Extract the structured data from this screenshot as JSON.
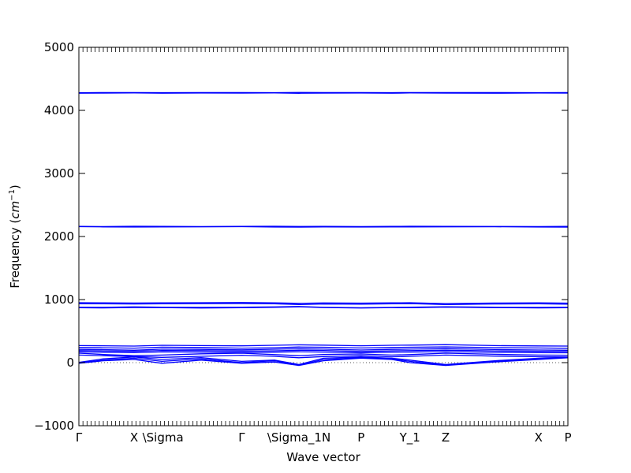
{
  "chart_data": {
    "type": "line",
    "title": "",
    "xlabel": "Wave vector",
    "ylabel": "Frequency ($cm^{-1}$)",
    "ylabel_text": "Frequency (",
    "ylabel_unit_base": "cm",
    "ylabel_unit_exp": "−1",
    "ylabel_close": ")",
    "ylim": [
      -1000,
      5000
    ],
    "xlim": [
      0,
      1
    ],
    "yticks": [
      -1000,
      0,
      1000,
      2000,
      3000,
      4000,
      5000
    ],
    "ytick_labels": [
      "−1000",
      "0",
      "1000",
      "2000",
      "3000",
      "4000",
      "5000"
    ],
    "xticks": [
      {
        "pos": 0.0,
        "label": "Γ"
      },
      {
        "pos": 0.113,
        "label": "X"
      },
      {
        "pos": 0.172,
        "label": "\\Sigma"
      },
      {
        "pos": 0.333,
        "label": "Γ"
      },
      {
        "pos": 0.45,
        "label": "\\Sigma_1N"
      },
      {
        "pos": 0.577,
        "label": "P"
      },
      {
        "pos": 0.677,
        "label": "Y_1"
      },
      {
        "pos": 0.75,
        "label": "Z"
      },
      {
        "pos": 0.94,
        "label": "X"
      },
      {
        "pos": 1.0,
        "label": "P"
      }
    ],
    "grid": false,
    "zero_line": "dotted",
    "line_color": "#0000ff",
    "series": [
      {
        "x": [
          0,
          0.05,
          0.113,
          0.17,
          0.25,
          0.333,
          0.4,
          0.45,
          0.5,
          0.577,
          0.64,
          0.677,
          0.75,
          0.85,
          0.94,
          1.0
        ],
        "values": [
          4280,
          4282,
          4283,
          4281,
          4282,
          4283,
          4281,
          4284,
          4282,
          4283,
          4281,
          4282,
          4283,
          4282,
          4281,
          4282
        ]
      },
      {
        "x": [
          0,
          0.05,
          0.113,
          0.17,
          0.25,
          0.333,
          0.4,
          0.45,
          0.5,
          0.577,
          0.64,
          0.677,
          0.75,
          0.85,
          0.94,
          1.0
        ],
        "values": [
          4272,
          4274,
          4276,
          4273,
          4275,
          4274,
          4276,
          4271,
          4274,
          4275,
          4273,
          4276,
          4274,
          4273,
          4275,
          4274
        ]
      },
      {
        "x": [
          0,
          0.05,
          0.113,
          0.17,
          0.25,
          0.333,
          0.4,
          0.45,
          0.5,
          0.577,
          0.64,
          0.677,
          0.75,
          0.85,
          0.94,
          1.0
        ],
        "values": [
          2160,
          2158,
          2162,
          2161,
          2158,
          2160,
          2163,
          2159,
          2161,
          2158,
          2160,
          2162,
          2161,
          2159,
          2158,
          2160
        ]
      },
      {
        "x": [
          0,
          0.05,
          0.113,
          0.17,
          0.25,
          0.333,
          0.4,
          0.45,
          0.5,
          0.577,
          0.64,
          0.677,
          0.75,
          0.85,
          0.94,
          1.0
        ],
        "values": [
          2156,
          2152,
          2150,
          2151,
          2154,
          2156,
          2150,
          2149,
          2152,
          2150,
          2153,
          2151,
          2154,
          2155,
          2150,
          2149
        ]
      },
      {
        "x": [
          0,
          0.05,
          0.113,
          0.17,
          0.25,
          0.333,
          0.4,
          0.45,
          0.5,
          0.577,
          0.64,
          0.677,
          0.75,
          0.85,
          0.94,
          1.0
        ],
        "values": [
          950,
          948,
          945,
          947,
          950,
          952,
          948,
          940,
          946,
          944,
          947,
          950,
          935,
          945,
          948,
          944
        ]
      },
      {
        "x": [
          0,
          0.05,
          0.113,
          0.17,
          0.25,
          0.333,
          0.4,
          0.45,
          0.5,
          0.577,
          0.64,
          0.677,
          0.75,
          0.85,
          0.94,
          1.0
        ],
        "values": [
          935,
          932,
          930,
          933,
          936,
          938,
          933,
          920,
          930,
          928,
          932,
          936,
          920,
          930,
          932,
          928
        ]
      },
      {
        "x": [
          0,
          0.05,
          0.113,
          0.17,
          0.25,
          0.333,
          0.4,
          0.45,
          0.5,
          0.577,
          0.64,
          0.677,
          0.75,
          0.85,
          0.94,
          1.0
        ],
        "values": [
          880,
          878,
          884,
          879,
          876,
          880,
          884,
          890,
          878,
          870,
          876,
          880,
          885,
          879,
          876,
          880
        ]
      },
      {
        "x": [
          0,
          0.05,
          0.113,
          0.17,
          0.25,
          0.333,
          0.4,
          0.45,
          0.5,
          0.577,
          0.64,
          0.677,
          0.75,
          0.85,
          0.94,
          1.0
        ],
        "values": [
          870,
          868,
          874,
          872,
          866,
          870,
          878,
          885,
          874,
          866,
          872,
          870,
          880,
          872,
          868,
          870
        ]
      },
      {
        "x": [
          0,
          0.05,
          0.113,
          0.17,
          0.25,
          0.333,
          0.4,
          0.45,
          0.5,
          0.577,
          0.64,
          0.677,
          0.75,
          0.85,
          0.94,
          1.0
        ],
        "values": [
          270,
          268,
          262,
          275,
          270,
          266,
          275,
          282,
          278,
          268,
          275,
          278,
          285,
          270,
          265,
          262
        ]
      },
      {
        "x": [
          0,
          0.05,
          0.113,
          0.17,
          0.25,
          0.333,
          0.4,
          0.45,
          0.5,
          0.577,
          0.64,
          0.677,
          0.75,
          0.85,
          0.94,
          1.0
        ],
        "values": [
          240,
          236,
          230,
          245,
          240,
          230,
          236,
          248,
          244,
          232,
          240,
          244,
          250,
          238,
          232,
          228
        ]
      },
      {
        "x": [
          0,
          0.05,
          0.113,
          0.17,
          0.25,
          0.333,
          0.4,
          0.45,
          0.5,
          0.577,
          0.64,
          0.677,
          0.75,
          0.85,
          0.94,
          1.0
        ],
        "values": [
          210,
          206,
          196,
          214,
          210,
          202,
          212,
          220,
          214,
          200,
          210,
          214,
          222,
          208,
          200,
          196
        ]
      },
      {
        "x": [
          0,
          0.05,
          0.113,
          0.17,
          0.25,
          0.333,
          0.4,
          0.45,
          0.5,
          0.577,
          0.64,
          0.677,
          0.75,
          0.85,
          0.94,
          1.0
        ],
        "values": [
          190,
          186,
          180,
          192,
          190,
          182,
          188,
          196,
          192,
          178,
          188,
          190,
          198,
          186,
          180,
          176
        ]
      },
      {
        "x": [
          0,
          0.05,
          0.113,
          0.17,
          0.25,
          0.333,
          0.4,
          0.45,
          0.5,
          0.577,
          0.64,
          0.677,
          0.75,
          0.85,
          0.94,
          1.0
        ],
        "values": [
          170,
          165,
          158,
          170,
          168,
          160,
          166,
          172,
          168,
          156,
          166,
          168,
          174,
          164,
          158,
          156
        ]
      },
      {
        "x": [
          0,
          0.05,
          0.113,
          0.17,
          0.25,
          0.333,
          0.4,
          0.45,
          0.5,
          0.577,
          0.64,
          0.677,
          0.75,
          0.85,
          0.94,
          1.0
        ],
        "values": [
          150,
          130,
          110,
          120,
          140,
          150,
          128,
          110,
          130,
          138,
          120,
          128,
          150,
          132,
          120,
          118
        ]
      },
      {
        "x": [
          0,
          0.05,
          0.113,
          0.17,
          0.25,
          0.333,
          0.4,
          0.45,
          0.5,
          0.577,
          0.64,
          0.677,
          0.75,
          0.85,
          0.94,
          1.0
        ],
        "values": [
          120,
          110,
          96,
          84,
          100,
          118,
          100,
          78,
          96,
          110,
          92,
          100,
          120,
          104,
          94,
          90
        ]
      },
      {
        "x": [
          0,
          0.05,
          0.113,
          0.17,
          0.25,
          0.333,
          0.4,
          0.45,
          0.5,
          0.577,
          0.64,
          0.677,
          0.75,
          0.85,
          0.94,
          1.0
        ],
        "values": [
          5,
          60,
          90,
          50,
          80,
          20,
          40,
          -30,
          70,
          90,
          70,
          40,
          -30,
          30,
          70,
          85
        ]
      },
      {
        "x": [
          0,
          0.05,
          0.113,
          0.17,
          0.25,
          0.333,
          0.4,
          0.45,
          0.5,
          0.577,
          0.64,
          0.677,
          0.75,
          0.85,
          0.94,
          1.0
        ],
        "values": [
          0,
          40,
          70,
          20,
          60,
          0,
          30,
          -40,
          50,
          80,
          60,
          20,
          -40,
          20,
          60,
          80
        ]
      },
      {
        "x": [
          0,
          0.05,
          0.113,
          0.17,
          0.25,
          0.333,
          0.4,
          0.45,
          0.5,
          0.577,
          0.64,
          0.677,
          0.75,
          0.85,
          0.94,
          1.0
        ],
        "values": [
          -10,
          30,
          50,
          -10,
          40,
          -10,
          10,
          -45,
          30,
          70,
          50,
          0,
          -45,
          10,
          50,
          78
        ]
      }
    ]
  }
}
